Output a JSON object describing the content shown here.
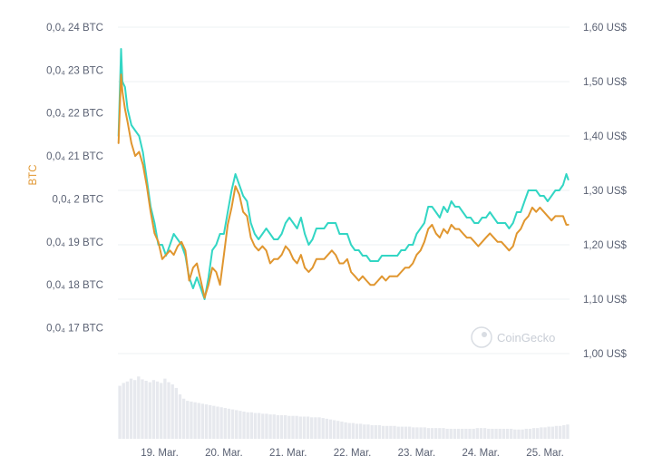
{
  "chart_data": {
    "type": "line",
    "watermark": "CoinGecko",
    "left_axis": {
      "title": "BTC",
      "ticks": [
        "0,0₄ 17 BTC",
        "0,0₄ 18 BTC",
        "0,0₄ 19 BTC",
        "0,0₄ 2 BTC",
        "0,0₄ 21 BTC",
        "0,0₄ 22 BTC",
        "0,0₄ 23 BTC",
        "0,0₄ 24 BTC"
      ],
      "tick_values": [
        1.7e-06,
        1.8e-06,
        1.9e-06,
        2e-06,
        2.1e-06,
        2.2e-06,
        2.3e-06,
        2.4e-06
      ],
      "range": [
        1.64e-06,
        2.4e-06
      ]
    },
    "right_axis": {
      "ticks": [
        "1,00 US$",
        "1,10 US$",
        "1,20 US$",
        "1,30 US$",
        "1,40 US$",
        "1,50 US$",
        "1,60 US$"
      ],
      "tick_values": [
        1.0,
        1.1,
        1.2,
        1.3,
        1.4,
        1.5,
        1.6
      ],
      "range": [
        1.0,
        1.6
      ]
    },
    "x_axis": {
      "ticks": [
        "19. Mar.",
        "20. Mar.",
        "21. Mar.",
        "22. Mar.",
        "23. Mar.",
        "24. Mar.",
        "25. Mar."
      ],
      "tick_positions": [
        19.0,
        20.0,
        21.0,
        22.0,
        23.0,
        24.0,
        25.0
      ],
      "range": [
        18.35,
        25.38
      ]
    },
    "grid": true,
    "colors": {
      "btc": "#e0962f",
      "usd": "#33d6c4",
      "volume": "#e7e9ee",
      "grid": "#eef0f3"
    },
    "series": [
      {
        "axis": "left",
        "color": "#e0962f",
        "x": [
          18.36,
          18.4,
          18.42,
          18.46,
          18.5,
          18.56,
          18.62,
          18.68,
          18.74,
          18.8,
          18.86,
          18.92,
          18.98,
          19.04,
          19.1,
          19.16,
          19.22,
          19.28,
          19.34,
          19.4,
          19.46,
          19.52,
          19.58,
          19.64,
          19.7,
          19.76,
          19.82,
          19.88,
          19.94,
          20.0,
          20.06,
          20.12,
          20.18,
          20.24,
          20.3,
          20.36,
          20.42,
          20.48,
          20.54,
          20.6,
          20.66,
          20.72,
          20.78,
          20.84,
          20.9,
          20.96,
          21.02,
          21.08,
          21.14,
          21.2,
          21.26,
          21.32,
          21.38,
          21.44,
          21.5,
          21.56,
          21.62,
          21.68,
          21.74,
          21.8,
          21.86,
          21.92,
          21.98,
          22.04,
          22.1,
          22.16,
          22.22,
          22.28,
          22.34,
          22.4,
          22.46,
          22.52,
          22.58,
          22.64,
          22.7,
          22.76,
          22.82,
          22.88,
          22.94,
          23.0,
          23.06,
          23.12,
          23.18,
          23.24,
          23.3,
          23.36,
          23.42,
          23.48,
          23.54,
          23.6,
          23.66,
          23.72,
          23.78,
          23.84,
          23.9,
          23.96,
          24.02,
          24.08,
          24.14,
          24.2,
          24.26,
          24.32,
          24.38,
          24.44,
          24.5,
          24.56,
          24.62,
          24.68,
          24.74,
          24.8,
          24.86,
          24.92,
          24.98,
          25.04,
          25.1,
          25.16,
          25.22,
          25.28,
          25.33,
          25.36
        ],
        "values": [
          2.13e-06,
          2.29e-06,
          2.25e-06,
          2.21e-06,
          2.18e-06,
          2.13e-06,
          2.1e-06,
          2.11e-06,
          2.08e-06,
          2.03e-06,
          1.97e-06,
          1.92e-06,
          1.9e-06,
          1.86e-06,
          1.87e-06,
          1.88e-06,
          1.87e-06,
          1.89e-06,
          1.9e-06,
          1.88e-06,
          1.81e-06,
          1.84e-06,
          1.85e-06,
          1.81e-06,
          1.77e-06,
          1.8e-06,
          1.84e-06,
          1.83e-06,
          1.8e-06,
          1.87e-06,
          1.94e-06,
          1.98e-06,
          2.03e-06,
          2.01e-06,
          1.97e-06,
          1.96e-06,
          1.91e-06,
          1.89e-06,
          1.88e-06,
          1.89e-06,
          1.88e-06,
          1.85e-06,
          1.86e-06,
          1.86e-06,
          1.87e-06,
          1.89e-06,
          1.88e-06,
          1.86e-06,
          1.85e-06,
          1.87e-06,
          1.84e-06,
          1.83e-06,
          1.84e-06,
          1.86e-06,
          1.86e-06,
          1.86e-06,
          1.87e-06,
          1.88e-06,
          1.87e-06,
          1.85e-06,
          1.85e-06,
          1.86e-06,
          1.83e-06,
          1.82e-06,
          1.81e-06,
          1.82e-06,
          1.81e-06,
          1.8e-06,
          1.8e-06,
          1.81e-06,
          1.82e-06,
          1.81e-06,
          1.82e-06,
          1.82e-06,
          1.82e-06,
          1.83e-06,
          1.84e-06,
          1.84e-06,
          1.85e-06,
          1.87e-06,
          1.88e-06,
          1.9e-06,
          1.93e-06,
          1.94e-06,
          1.92e-06,
          1.91e-06,
          1.93e-06,
          1.92e-06,
          1.94e-06,
          1.93e-06,
          1.93e-06,
          1.92e-06,
          1.91e-06,
          1.91e-06,
          1.9e-06,
          1.89e-06,
          1.9e-06,
          1.91e-06,
          1.92e-06,
          1.91e-06,
          1.9e-06,
          1.9e-06,
          1.89e-06,
          1.88e-06,
          1.89e-06,
          1.92e-06,
          1.93e-06,
          1.95e-06,
          1.96e-06,
          1.98e-06,
          1.97e-06,
          1.98e-06,
          1.97e-06,
          1.96e-06,
          1.95e-06,
          1.96e-06,
          1.96e-06,
          1.96e-06,
          1.94e-06,
          1.94e-06
        ]
      },
      {
        "axis": "right",
        "color": "#33d6c4",
        "x": [
          18.36,
          18.4,
          18.42,
          18.46,
          18.5,
          18.56,
          18.62,
          18.68,
          18.74,
          18.8,
          18.86,
          18.92,
          18.98,
          19.04,
          19.1,
          19.16,
          19.22,
          19.28,
          19.34,
          19.4,
          19.46,
          19.52,
          19.58,
          19.64,
          19.7,
          19.76,
          19.82,
          19.88,
          19.94,
          20.0,
          20.06,
          20.12,
          20.18,
          20.24,
          20.3,
          20.36,
          20.42,
          20.48,
          20.54,
          20.6,
          20.66,
          20.72,
          20.78,
          20.84,
          20.9,
          20.96,
          21.02,
          21.08,
          21.14,
          21.2,
          21.26,
          21.32,
          21.38,
          21.44,
          21.5,
          21.56,
          21.62,
          21.68,
          21.74,
          21.8,
          21.86,
          21.92,
          21.98,
          22.04,
          22.1,
          22.16,
          22.22,
          22.28,
          22.34,
          22.4,
          22.46,
          22.52,
          22.58,
          22.64,
          22.7,
          22.76,
          22.82,
          22.88,
          22.94,
          23.0,
          23.06,
          23.12,
          23.18,
          23.24,
          23.3,
          23.36,
          23.42,
          23.48,
          23.54,
          23.6,
          23.66,
          23.72,
          23.78,
          23.84,
          23.9,
          23.96,
          24.02,
          24.08,
          24.14,
          24.2,
          24.26,
          24.32,
          24.38,
          24.44,
          24.5,
          24.56,
          24.62,
          24.68,
          24.74,
          24.8,
          24.86,
          24.92,
          24.98,
          25.04,
          25.1,
          25.16,
          25.22,
          25.28,
          25.33,
          25.36
        ],
        "values": [
          1.4,
          1.56,
          1.5,
          1.49,
          1.45,
          1.42,
          1.41,
          1.4,
          1.37,
          1.32,
          1.27,
          1.24,
          1.2,
          1.2,
          1.18,
          1.2,
          1.22,
          1.21,
          1.2,
          1.18,
          1.14,
          1.12,
          1.14,
          1.12,
          1.1,
          1.14,
          1.19,
          1.2,
          1.22,
          1.22,
          1.26,
          1.3,
          1.33,
          1.31,
          1.29,
          1.28,
          1.24,
          1.22,
          1.21,
          1.22,
          1.23,
          1.22,
          1.21,
          1.21,
          1.22,
          1.24,
          1.25,
          1.24,
          1.23,
          1.25,
          1.22,
          1.2,
          1.21,
          1.23,
          1.23,
          1.23,
          1.24,
          1.24,
          1.24,
          1.22,
          1.22,
          1.22,
          1.2,
          1.19,
          1.19,
          1.18,
          1.18,
          1.17,
          1.17,
          1.17,
          1.18,
          1.18,
          1.18,
          1.18,
          1.18,
          1.19,
          1.19,
          1.2,
          1.2,
          1.22,
          1.23,
          1.24,
          1.27,
          1.27,
          1.26,
          1.25,
          1.27,
          1.26,
          1.28,
          1.27,
          1.27,
          1.26,
          1.25,
          1.25,
          1.24,
          1.24,
          1.25,
          1.25,
          1.26,
          1.25,
          1.24,
          1.24,
          1.24,
          1.23,
          1.24,
          1.26,
          1.26,
          1.28,
          1.3,
          1.3,
          1.3,
          1.29,
          1.29,
          1.28,
          1.29,
          1.3,
          1.3,
          1.31,
          1.33,
          1.32
        ]
      }
    ],
    "volume": [
      0.74,
      0.78,
      0.8,
      0.84,
      0.82,
      0.87,
      0.83,
      0.81,
      0.79,
      0.82,
      0.8,
      0.78,
      0.84,
      0.79,
      0.76,
      0.71,
      0.62,
      0.56,
      0.53,
      0.52,
      0.51,
      0.5,
      0.49,
      0.48,
      0.47,
      0.46,
      0.45,
      0.44,
      0.43,
      0.42,
      0.41,
      0.4,
      0.39,
      0.38,
      0.37,
      0.37,
      0.36,
      0.36,
      0.35,
      0.35,
      0.34,
      0.34,
      0.33,
      0.33,
      0.33,
      0.32,
      0.32,
      0.32,
      0.31,
      0.31,
      0.31,
      0.3,
      0.3,
      0.3,
      0.29,
      0.28,
      0.27,
      0.26,
      0.25,
      0.24,
      0.23,
      0.22,
      0.22,
      0.21,
      0.21,
      0.2,
      0.2,
      0.19,
      0.19,
      0.19,
      0.18,
      0.18,
      0.18,
      0.18,
      0.17,
      0.17,
      0.17,
      0.17,
      0.16,
      0.16,
      0.16,
      0.16,
      0.15,
      0.15,
      0.15,
      0.15,
      0.15,
      0.14,
      0.14,
      0.14,
      0.14,
      0.14,
      0.14,
      0.14,
      0.14,
      0.15,
      0.15,
      0.15,
      0.14,
      0.14,
      0.14,
      0.14,
      0.14,
      0.14,
      0.14,
      0.13,
      0.13,
      0.13,
      0.14,
      0.14,
      0.15,
      0.15,
      0.16,
      0.16,
      0.17,
      0.17,
      0.18,
      0.18,
      0.19,
      0.2
    ]
  }
}
